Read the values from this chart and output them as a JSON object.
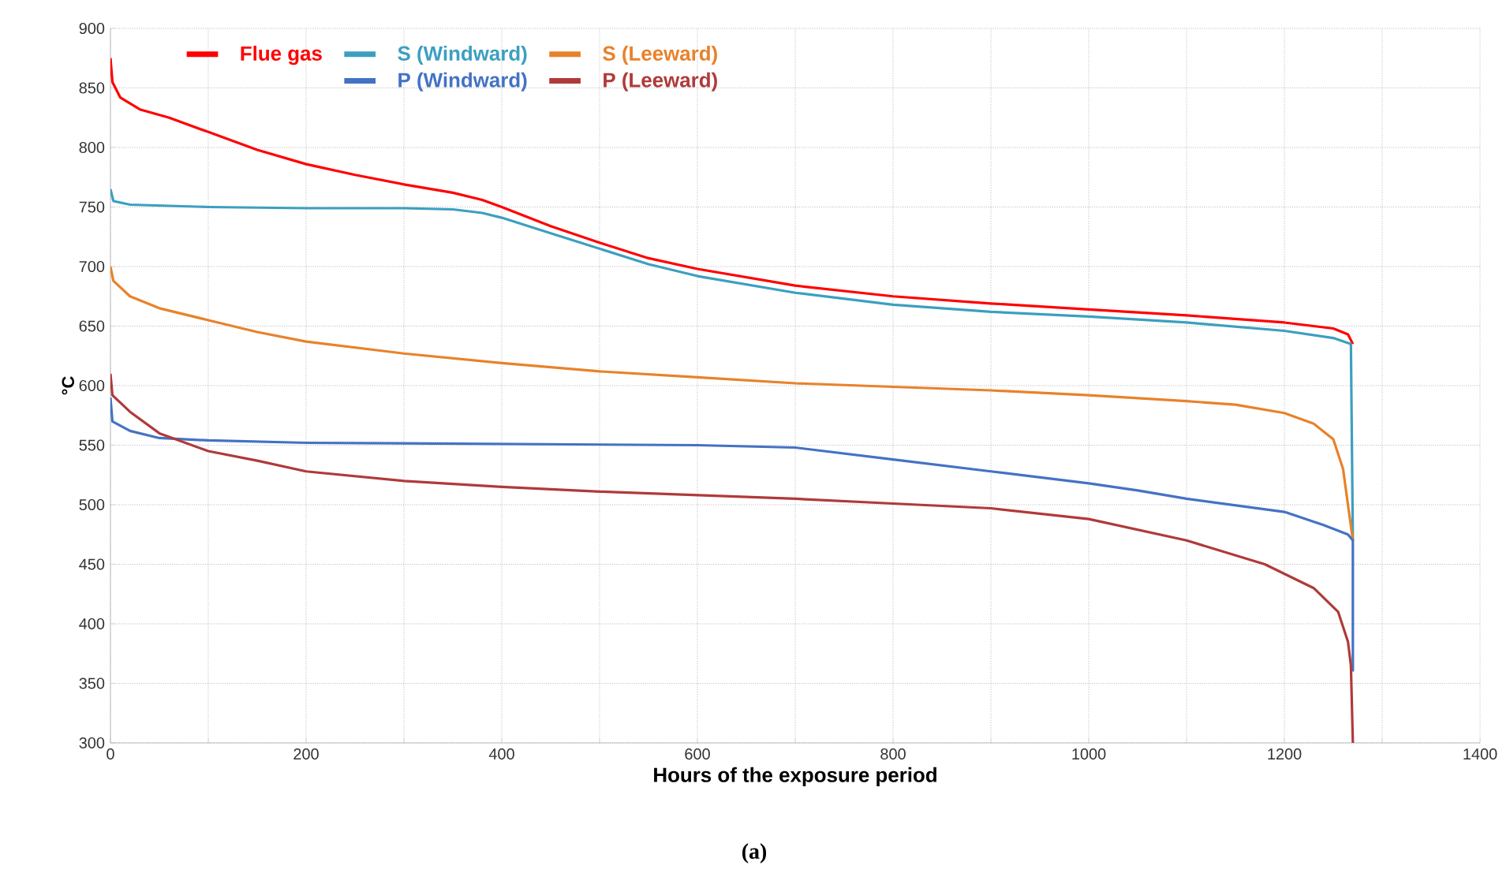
{
  "chart_data": {
    "type": "line",
    "xlabel": "Hours of the exposure period",
    "ylabel": "°C",
    "annotations": [
      "(a)"
    ],
    "xlim": [
      0,
      1400
    ],
    "ylim": [
      300,
      900
    ],
    "xticks": [
      0,
      {
        "value": 100,
        "label": null
      },
      200,
      {
        "value": 300,
        "label": null
      },
      400,
      {
        "value": 500,
        "label": null
      },
      600,
      {
        "value": 700,
        "label": null
      },
      800,
      {
        "value": 900,
        "label": null
      },
      1000,
      {
        "value": 1100,
        "label": null
      },
      1200,
      {
        "value": 1300,
        "label": null
      },
      1400
    ],
    "yticks": [
      300,
      350,
      400,
      450,
      500,
      550,
      600,
      650,
      700,
      750,
      800,
      850,
      900
    ],
    "grid": true,
    "legend": "top",
    "series": [
      {
        "name": "Flue gas",
        "color": "#ff0000",
        "x": [
          0,
          2,
          10,
          30,
          60,
          100,
          150,
          200,
          250,
          300,
          350,
          380,
          400,
          450,
          500,
          550,
          600,
          700,
          800,
          900,
          1000,
          1100,
          1200,
          1250,
          1265,
          1270
        ],
        "values": [
          875,
          855,
          842,
          832,
          825,
          813,
          798,
          786,
          777,
          769,
          762,
          756,
          750,
          734,
          720,
          707,
          698,
          684,
          675,
          669,
          664,
          659,
          653,
          648,
          643,
          635
        ]
      },
      {
        "name": "S (Windward)",
        "color": "#3c9fc0",
        "x": [
          0,
          3,
          20,
          100,
          200,
          300,
          350,
          380,
          400,
          450,
          500,
          550,
          600,
          700,
          800,
          900,
          1000,
          1100,
          1200,
          1250,
          1268,
          1270
        ],
        "values": [
          765,
          755,
          752,
          750,
          749,
          749,
          748,
          745,
          741,
          728,
          715,
          702,
          692,
          678,
          668,
          662,
          658,
          653,
          646,
          640,
          635,
          470
        ]
      },
      {
        "name": "S (Leeward)",
        "color": "#e8822a",
        "x": [
          0,
          3,
          20,
          50,
          100,
          150,
          200,
          300,
          400,
          500,
          600,
          700,
          800,
          900,
          1000,
          1100,
          1150,
          1200,
          1230,
          1250,
          1260,
          1265,
          1270
        ],
        "values": [
          700,
          688,
          675,
          665,
          655,
          645,
          637,
          627,
          619,
          612,
          607,
          602,
          599,
          596,
          592,
          587,
          584,
          577,
          568,
          555,
          530,
          500,
          470
        ]
      },
      {
        "name": "P (Windward)",
        "color": "#4472c4",
        "x": [
          0,
          2,
          20,
          50,
          100,
          200,
          400,
          600,
          700,
          800,
          900,
          1000,
          1050,
          1100,
          1200,
          1240,
          1265,
          1270,
          1270
        ],
        "values": [
          590,
          570,
          562,
          556,
          554,
          552,
          551,
          550,
          548,
          538,
          528,
          518,
          512,
          505,
          494,
          483,
          475,
          470,
          360
        ]
      },
      {
        "name": "P (Leeward)",
        "color": "#b03a3a",
        "x": [
          0,
          2,
          20,
          50,
          100,
          150,
          200,
          300,
          400,
          500,
          600,
          700,
          800,
          900,
          1000,
          1100,
          1180,
          1230,
          1255,
          1265,
          1268,
          1270
        ],
        "values": [
          610,
          592,
          578,
          560,
          545,
          537,
          528,
          520,
          515,
          511,
          508,
          505,
          501,
          497,
          488,
          470,
          450,
          430,
          410,
          385,
          365,
          300
        ]
      }
    ]
  }
}
